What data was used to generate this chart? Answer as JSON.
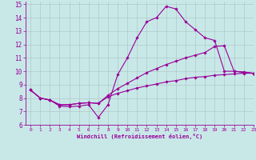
{
  "xlabel": "Windchill (Refroidissement éolien,°C)",
  "xlim": [
    -0.5,
    23
  ],
  "ylim": [
    6,
    15.2
  ],
  "xticks": [
    0,
    1,
    2,
    3,
    4,
    5,
    6,
    7,
    8,
    9,
    10,
    11,
    12,
    13,
    14,
    15,
    16,
    17,
    18,
    19,
    20,
    21,
    22,
    23
  ],
  "yticks": [
    6,
    7,
    8,
    9,
    10,
    11,
    12,
    13,
    14,
    15
  ],
  "bg_color": "#c8e8e8",
  "grid_color": "#b0c8c8",
  "line_color": "#990099",
  "line1_x": [
    0,
    1,
    2,
    3,
    4,
    5,
    6,
    7,
    8,
    9,
    10,
    11,
    12,
    13,
    14,
    15,
    16,
    17,
    18,
    19,
    20,
    21,
    22,
    23
  ],
  "line1_y": [
    8.6,
    8.0,
    7.85,
    7.4,
    7.35,
    7.4,
    7.5,
    6.55,
    7.5,
    9.75,
    11.0,
    12.5,
    13.7,
    14.0,
    14.85,
    14.65,
    13.7,
    13.1,
    12.5,
    12.3,
    10.0,
    10.0,
    9.95,
    9.85
  ],
  "line2_x": [
    0,
    1,
    2,
    3,
    4,
    5,
    6,
    7,
    8,
    9,
    10,
    11,
    12,
    13,
    14,
    15,
    16,
    17,
    18,
    19,
    20,
    21,
    22,
    23
  ],
  "line2_y": [
    8.6,
    8.0,
    7.85,
    7.5,
    7.5,
    7.6,
    7.65,
    7.6,
    8.2,
    8.7,
    9.1,
    9.5,
    9.9,
    10.2,
    10.5,
    10.75,
    11.0,
    11.2,
    11.4,
    11.85,
    11.9,
    10.0,
    9.9,
    9.85
  ],
  "line3_x": [
    0,
    1,
    2,
    3,
    4,
    5,
    6,
    7,
    8,
    9,
    10,
    11,
    12,
    13,
    14,
    15,
    16,
    17,
    18,
    19,
    20,
    21,
    22,
    23
  ],
  "line3_y": [
    8.6,
    8.0,
    7.85,
    7.5,
    7.5,
    7.6,
    7.65,
    7.6,
    8.1,
    8.35,
    8.55,
    8.75,
    8.9,
    9.05,
    9.2,
    9.3,
    9.45,
    9.55,
    9.6,
    9.7,
    9.75,
    9.8,
    9.85,
    9.85
  ],
  "markersize": 1.8,
  "linewidth": 0.8
}
